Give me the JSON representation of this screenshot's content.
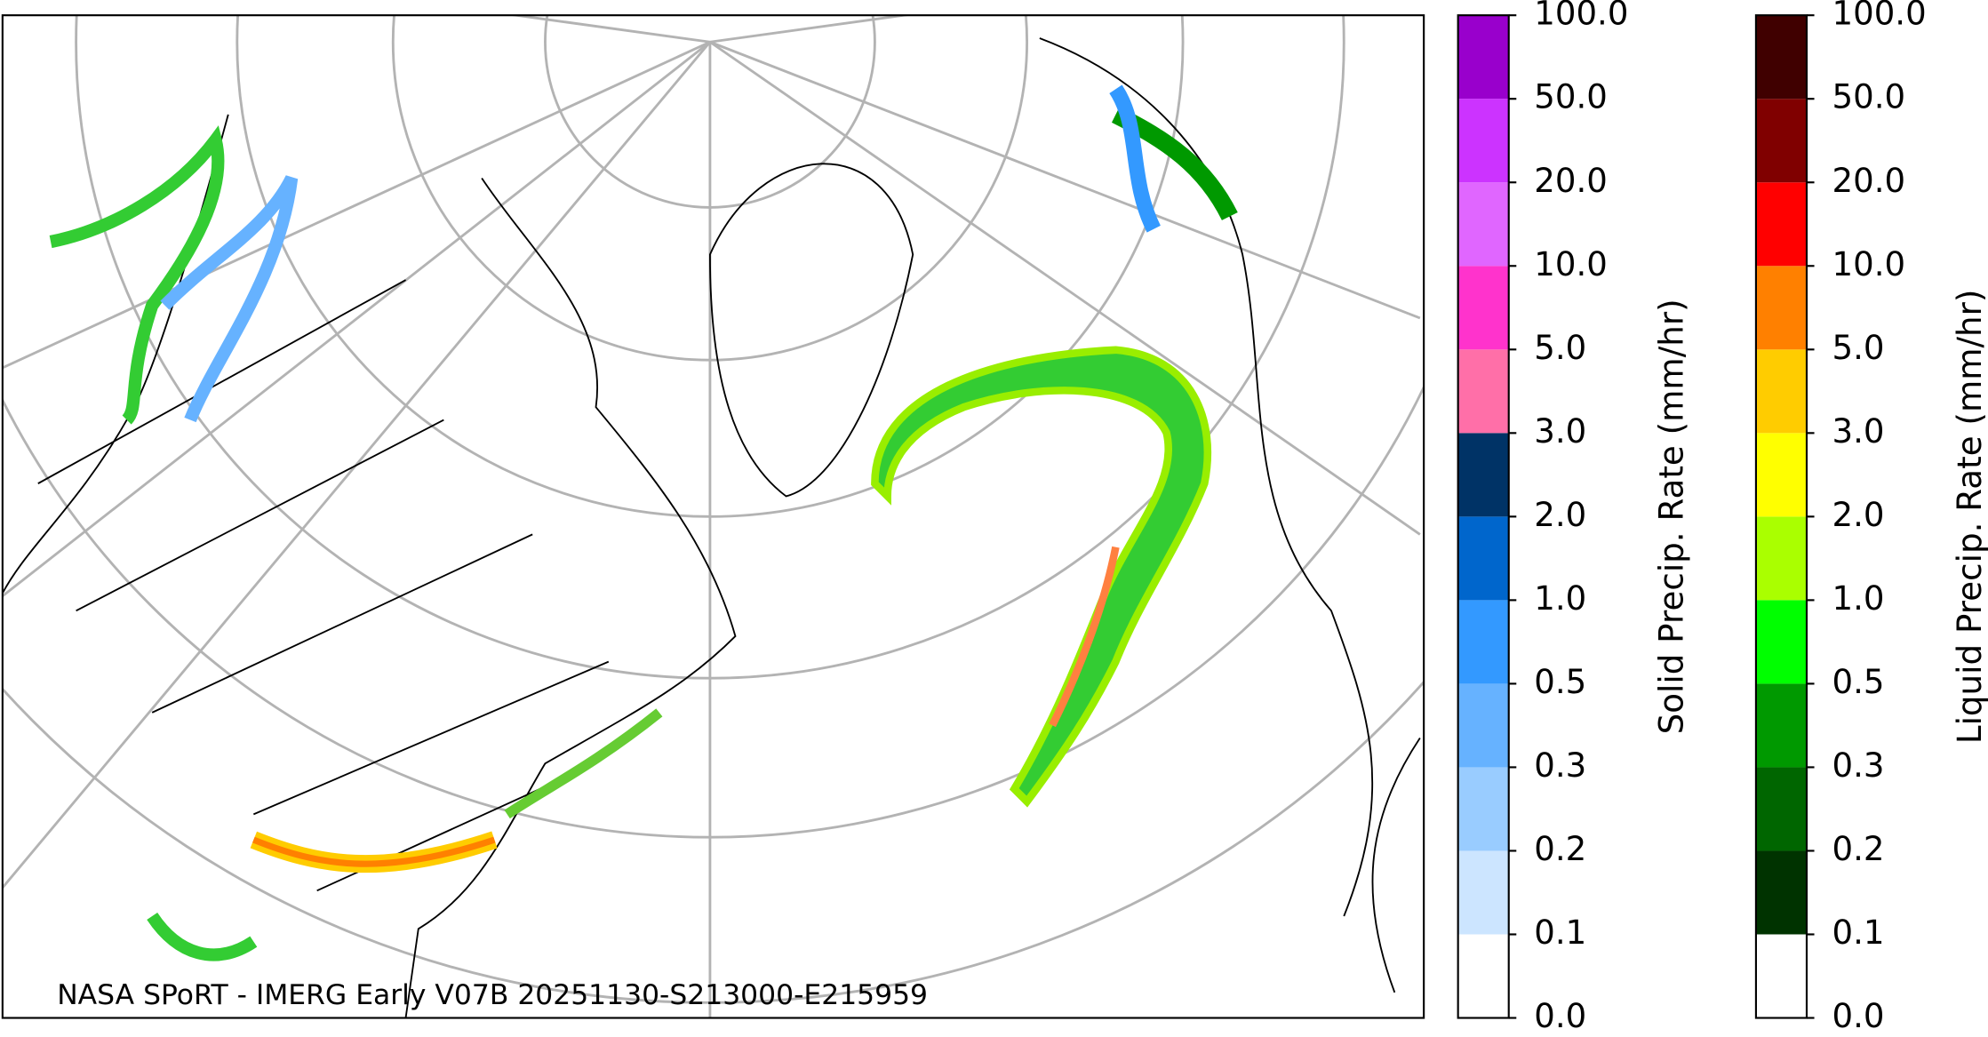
{
  "map": {
    "caption": "NASA SPoRT - IMERG Early V07B 20251130-S213000-E215959"
  },
  "colorbars": [
    {
      "label": "Solid Precip. Rate (mm/hr)",
      "ticks": [
        "0.0",
        "0.1",
        "0.2",
        "0.3",
        "0.5",
        "1.0",
        "2.0",
        "3.0",
        "5.0",
        "10.0",
        "20.0",
        "50.0",
        "100.0"
      ],
      "colors": [
        "#ffffff",
        "#cce5ff",
        "#99ccff",
        "#66b2ff",
        "#3399ff",
        "#0066cc",
        "#003366",
        "#ff6fa8",
        "#ff33cc",
        "#e066ff",
        "#cc33ff",
        "#9900cc"
      ]
    },
    {
      "label": "Liquid Precip. Rate (mm/hr)",
      "ticks": [
        "0.0",
        "0.1",
        "0.2",
        "0.3",
        "0.5",
        "1.0",
        "2.0",
        "3.0",
        "5.0",
        "10.0",
        "20.0",
        "50.0",
        "100.0"
      ],
      "colors": [
        "#ffffff",
        "#003300",
        "#006600",
        "#009900",
        "#00ff00",
        "#aaff00",
        "#ffff00",
        "#ffcc00",
        "#ff8000",
        "#ff0000",
        "#800000",
        "#400000"
      ]
    }
  ]
}
